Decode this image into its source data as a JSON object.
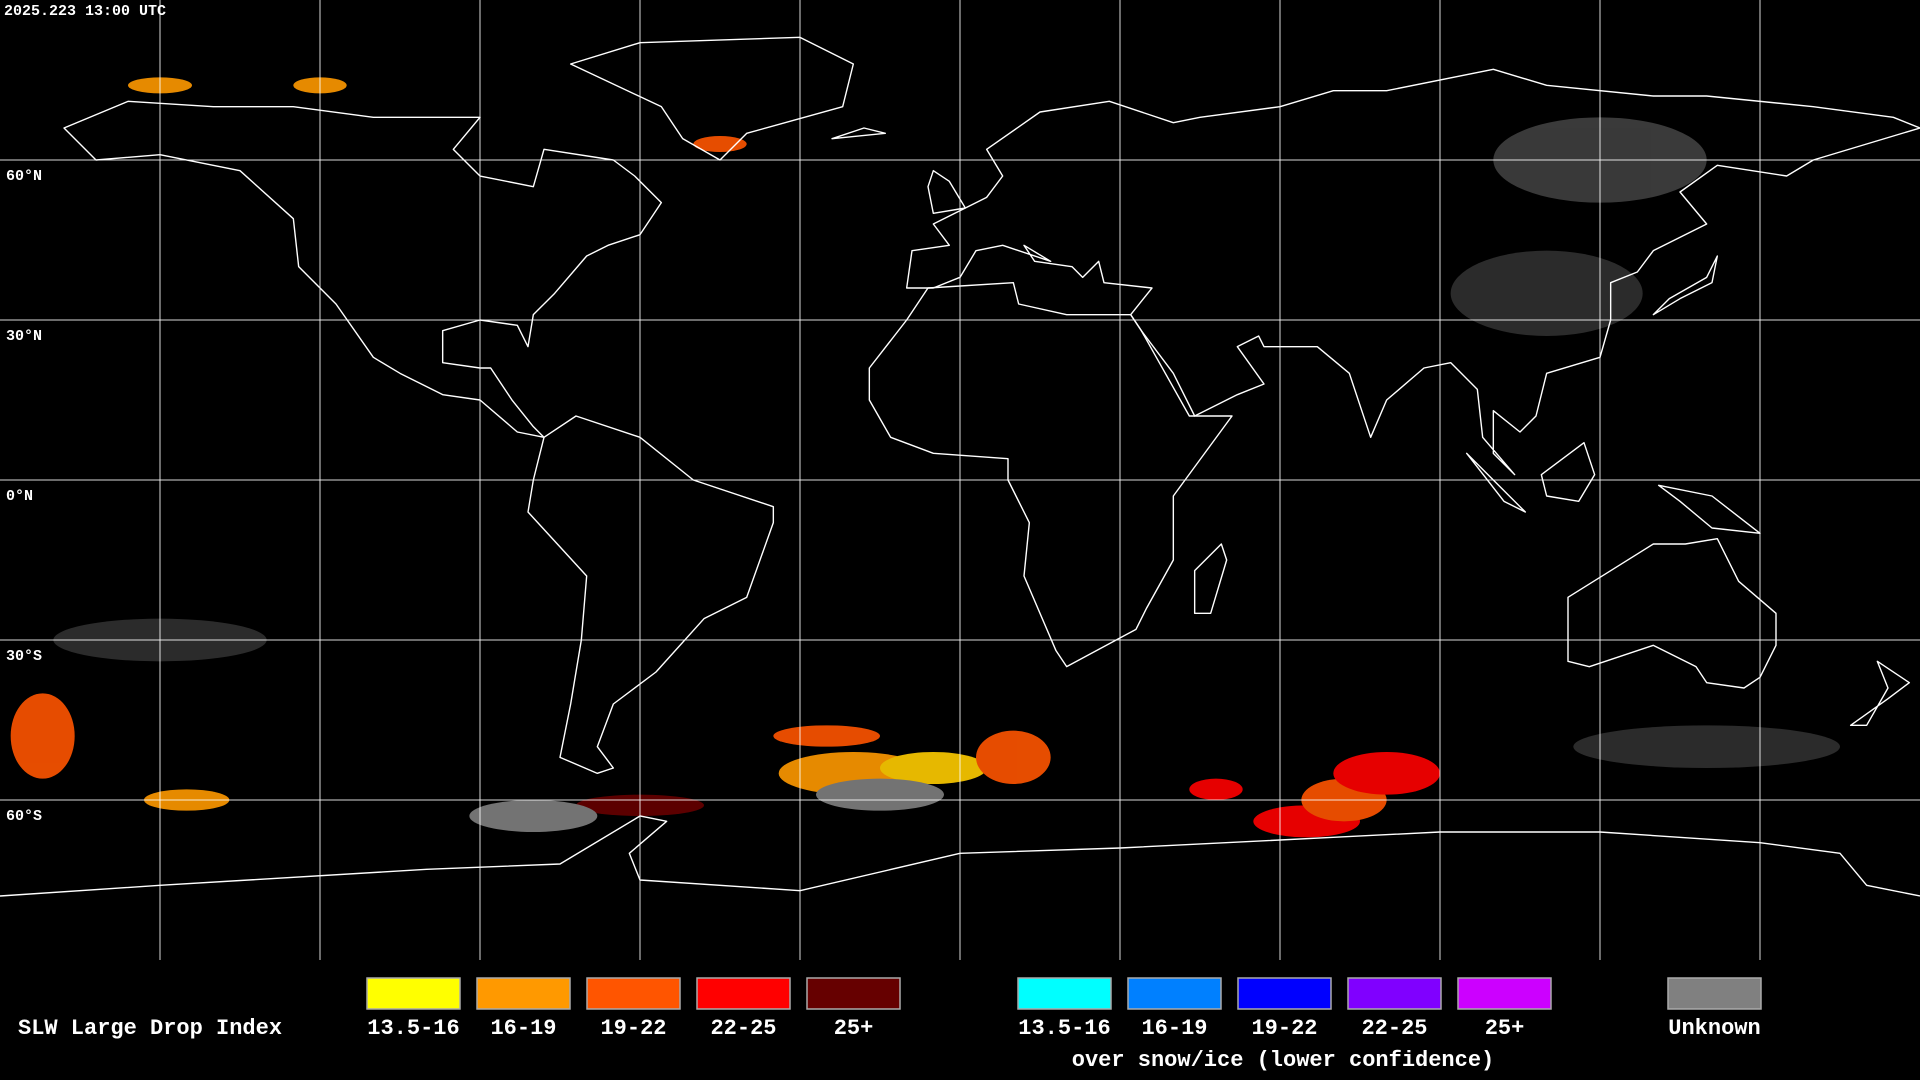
{
  "header": {
    "timestamp": "2025.223 13:00 UTC"
  },
  "lat_labels": [
    "60°N",
    "30°N",
    "0°N",
    "30°S",
    "60°S"
  ],
  "legend": {
    "title": "SLW Large Drop Index",
    "groups": [
      {
        "items": [
          {
            "label": "13.5-16",
            "color": "#ffff00"
          },
          {
            "label": "16-19",
            "color": "#ff9900"
          },
          {
            "label": "19-22",
            "color": "#ff5500"
          },
          {
            "label": "22-25",
            "color": "#ff0000"
          },
          {
            "label": "25+",
            "color": "#660000"
          }
        ]
      },
      {
        "items": [
          {
            "label": "13.5-16",
            "color": "#00ffff"
          },
          {
            "label": "16-19",
            "color": "#0080ff"
          },
          {
            "label": "19-22",
            "color": "#0000ff"
          },
          {
            "label": "22-25",
            "color": "#8000ff"
          },
          {
            "label": "25+",
            "color": "#cc00ff"
          }
        ],
        "caption": "over snow/ice (lower confidence)"
      },
      {
        "items": [
          {
            "label": "Unknown",
            "color": "#808080"
          }
        ]
      }
    ]
  }
}
